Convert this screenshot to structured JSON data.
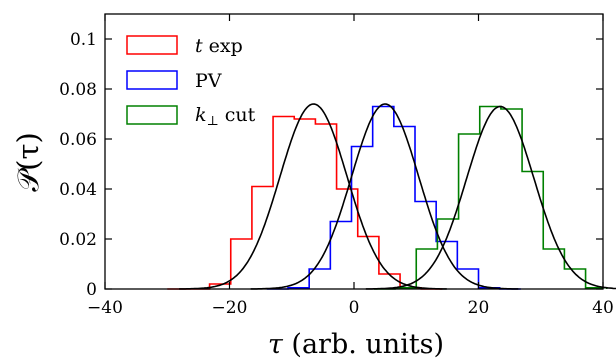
{
  "chart_data": {
    "type": "line",
    "xlabel_symbol": "τ",
    "xlabel_rest": " (arb. units)",
    "ylabel_main": "𝒫",
    "ylabel_var": "(τ)",
    "xlim": [
      -40,
      40
    ],
    "ylim": [
      0,
      0.11
    ],
    "xticks": [
      -40,
      -20,
      0,
      20,
      40
    ],
    "xtick_labels": [
      "−40",
      "−20",
      "0",
      "20",
      "40"
    ],
    "yticks": [
      0,
      0.02,
      0.04,
      0.06,
      0.08,
      0.1
    ],
    "ytick_labels": [
      "0",
      "0.02",
      "0.04",
      "0.06",
      "0.08",
      "0.1"
    ],
    "grid": false,
    "legend_position": "top-left",
    "legend": [
      {
        "label_italic": "t",
        "label_rest": " exp",
        "color": "#ff0000"
      },
      {
        "label_italic": "",
        "label_rest": "PV",
        "color": "#0000ff"
      },
      {
        "label_italic": "k",
        "label_sub": "⊥",
        "label_rest": " cut",
        "color": "#008000"
      }
    ],
    "histograms": [
      {
        "color": "#ff0000",
        "edges": [
          -30,
          -26.6,
          -23.2,
          -19.8,
          -16.4,
          -13.0,
          -9.6,
          -6.2,
          -2.8,
          0.6,
          4.0,
          7.4,
          10.8,
          14.2
        ],
        "values": [
          0,
          0,
          0.002,
          0.02,
          0.041,
          0.069,
          0.068,
          0.066,
          0.04,
          0.021,
          0.006,
          0.0005,
          0
        ]
      },
      {
        "color": "#0000ff",
        "edges": [
          -14,
          -10.6,
          -7.2,
          -3.8,
          -0.4,
          3.0,
          6.4,
          9.8,
          13.2,
          16.6,
          20.0,
          23.4,
          26.8
        ],
        "values": [
          0,
          0.0005,
          0.008,
          0.027,
          0.057,
          0.073,
          0.065,
          0.035,
          0.019,
          0.008,
          0.0005,
          0
        ]
      },
      {
        "color": "#008000",
        "edges": [
          3.2,
          6.6,
          10.0,
          13.4,
          16.8,
          20.2,
          23.6,
          27.0,
          30.4,
          33.8,
          37.2,
          40.6
        ],
        "values": [
          0,
          0.0005,
          0.016,
          0.028,
          0.062,
          0.073,
          0.072,
          0.047,
          0.016,
          0.008,
          0.0005
        ]
      }
    ],
    "fits": [
      {
        "color": "#000000",
        "mu": -6.5,
        "sigma": 5.4,
        "amp": 0.074
      },
      {
        "color": "#000000",
        "mu": 5.0,
        "sigma": 5.4,
        "amp": 0.074
      },
      {
        "color": "#000000",
        "mu": 23.5,
        "sigma": 5.4,
        "amp": 0.073
      }
    ]
  }
}
